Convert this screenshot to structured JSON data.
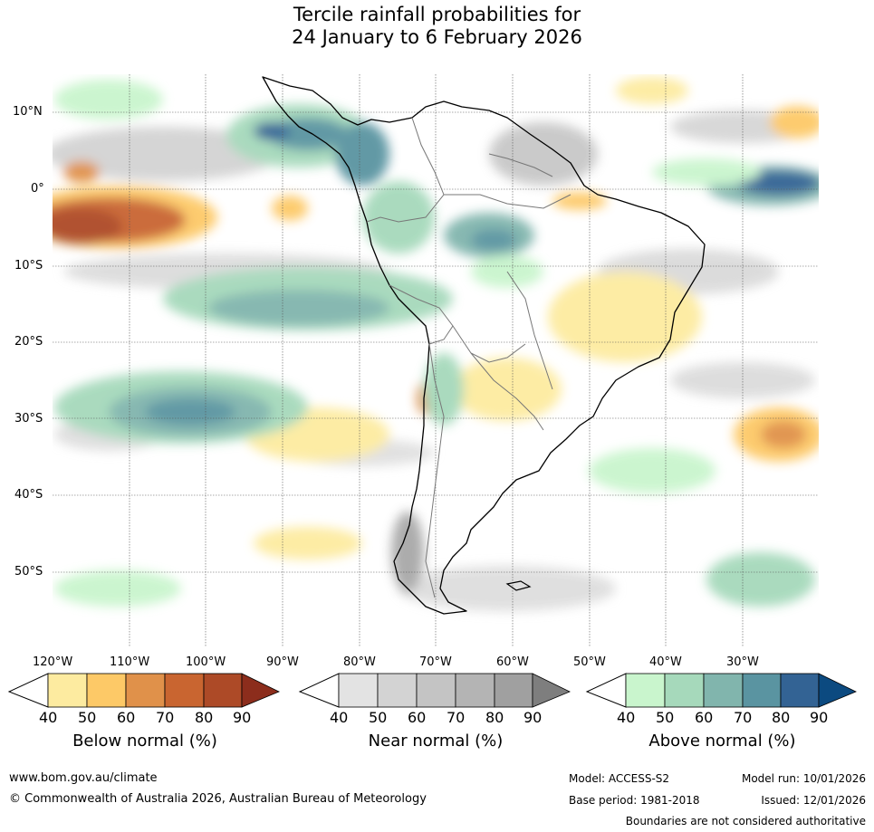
{
  "title": {
    "line1": "Tercile rainfall probabilities for",
    "line2": "24 January to 6 February 2026"
  },
  "map": {
    "region": "South America",
    "lat_labels": [
      "10°N",
      "0°",
      "10°S",
      "20°S",
      "30°S",
      "40°S",
      "50°S"
    ],
    "lon_labels": [
      "120°W",
      "110°W",
      "100°W",
      "90°W",
      "80°W",
      "70°W",
      "60°W",
      "50°W",
      "40°W",
      "30°W"
    ]
  },
  "colorbars": [
    {
      "title": "Below normal (%)",
      "ticks": [
        "40",
        "50",
        "60",
        "70",
        "80",
        "90"
      ],
      "colors": [
        "#fdeba0",
        "#fdc967",
        "#e0914a",
        "#c96530",
        "#ad4a27",
        "#8c2d1c"
      ]
    },
    {
      "title": "Near normal (%)",
      "ticks": [
        "40",
        "50",
        "60",
        "70",
        "80",
        "90"
      ],
      "colors": [
        "#e3e3e3",
        "#d3d3d3",
        "#c4c4c4",
        "#b4b4b4",
        "#a0a0a0",
        "#7e7e7e"
      ]
    },
    {
      "title": "Above normal (%)",
      "ticks": [
        "40",
        "50",
        "60",
        "70",
        "80",
        "90"
      ],
      "colors": [
        "#c9f5cd",
        "#a6d9bb",
        "#81b5ad",
        "#5a94a1",
        "#336394",
        "#0c4a80"
      ]
    }
  ],
  "footer": {
    "url": "www.bom.gov.au/climate",
    "copyright": "© Commonwealth of Australia 2026, Australian Bureau of Meteorology",
    "model": "Model: ACCESS-S2",
    "model_run": "Model run: 10/01/2026",
    "base_period": "Base period: 1981-2018",
    "issued": "Issued: 12/01/2026",
    "disclaimer": "Boundaries are not considered authoritative"
  }
}
